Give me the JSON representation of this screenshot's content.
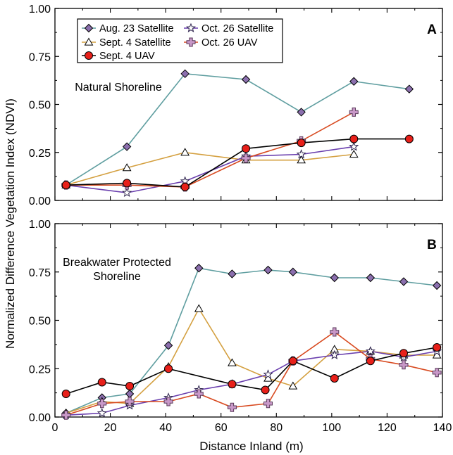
{
  "figure": {
    "ylabel": "Normalized Difference Vegetation Index (NDVI)",
    "xlabel": "Distance Inland (m)"
  },
  "legend": [
    {
      "key": "aug23sat",
      "label": "Aug. 23 Satellite"
    },
    {
      "key": "sept4sat",
      "label": "Sept. 4 Satellite"
    },
    {
      "key": "sept4uav",
      "label": "Sept. 4 UAV"
    },
    {
      "key": "oct26sat",
      "label": "Oct. 26 Satellite"
    },
    {
      "key": "oct26uav",
      "label": "Oct. 26 UAV"
    }
  ],
  "styles": {
    "aug23sat": {
      "line": "#5f9ea0",
      "fill": "#8b6fae",
      "marker": "diamond"
    },
    "sept4sat": {
      "line": "#d4a040",
      "fill": "#ffffff",
      "marker": "triangle"
    },
    "sept4uav": {
      "line": "#000000",
      "fill": "#e8201a",
      "marker": "circle"
    },
    "oct26sat": {
      "line": "#6a3fae",
      "fill": "#ffffff",
      "marker": "star"
    },
    "oct26uav": {
      "line": "#d84a20",
      "fill": "#c898c8",
      "marker": "plus"
    }
  },
  "chart_data": [
    {
      "type": "line",
      "panel_letter": "A",
      "annotation": [
        "Natural Shoreline"
      ],
      "xlim": [
        0,
        140
      ],
      "ylim": [
        0,
        1.0
      ],
      "yticks": [
        "0.00",
        "0.25",
        "0.50",
        "0.75",
        "1.00"
      ],
      "xticks": [],
      "series": [
        {
          "key": "aug23sat",
          "name": "Aug. 23 Satellite",
          "x": [
            4,
            26,
            47,
            69,
            89,
            108,
            128
          ],
          "y": [
            0.08,
            0.28,
            0.66,
            0.63,
            0.46,
            0.62,
            0.58
          ]
        },
        {
          "key": "sept4sat",
          "name": "Sept. 4 Satellite",
          "x": [
            4,
            26,
            47,
            69,
            89,
            108
          ],
          "y": [
            0.08,
            0.17,
            0.25,
            0.21,
            0.21,
            0.24
          ]
        },
        {
          "key": "oct26sat",
          "name": "Oct. 26 Satellite",
          "x": [
            4,
            26,
            47,
            69,
            89,
            108
          ],
          "y": [
            0.08,
            0.04,
            0.1,
            0.23,
            0.24,
            0.28
          ]
        },
        {
          "key": "oct26uav",
          "name": "Oct. 26 UAV",
          "x": [
            4,
            26,
            47,
            69,
            89,
            108
          ],
          "y": [
            0.08,
            0.08,
            0.07,
            0.22,
            0.31,
            0.46
          ]
        },
        {
          "key": "sept4uav",
          "name": "Sept. 4 UAV",
          "x": [
            4,
            26,
            47,
            69,
            89,
            108,
            128
          ],
          "y": [
            0.08,
            0.09,
            0.07,
            0.27,
            0.3,
            0.32,
            0.32
          ]
        }
      ]
    },
    {
      "type": "line",
      "panel_letter": "B",
      "annotation": [
        "Breakwater Protected",
        "Shoreline"
      ],
      "xlim": [
        0,
        140
      ],
      "ylim": [
        0,
        1.0
      ],
      "yticks": [
        "0.00",
        "0.25",
        "0.50",
        "0.75",
        "1.00"
      ],
      "xticks": [
        "0",
        "20",
        "40",
        "60",
        "80",
        "100",
        "120",
        "140"
      ],
      "series": [
        {
          "key": "aug23sat",
          "name": "Aug. 23 Satellite",
          "x": [
            4,
            17,
            27,
            41,
            52,
            64,
            77,
            86,
            101,
            114,
            126,
            138
          ],
          "y": [
            0.02,
            0.1,
            0.12,
            0.37,
            0.77,
            0.74,
            0.76,
            0.75,
            0.72,
            0.72,
            0.7,
            0.68
          ]
        },
        {
          "key": "sept4sat",
          "name": "Sept. 4 Satellite",
          "x": [
            4,
            17,
            27,
            41,
            52,
            64,
            77,
            86,
            101,
            114,
            126,
            138
          ],
          "y": [
            0.02,
            0.08,
            0.07,
            0.26,
            0.56,
            0.28,
            0.2,
            0.16,
            0.35,
            0.34,
            0.32,
            0.32
          ]
        },
        {
          "key": "oct26sat",
          "name": "Oct. 26 Satellite",
          "x": [
            4,
            17,
            27,
            41,
            52,
            64,
            77,
            86,
            101,
            114,
            126,
            138
          ],
          "y": [
            0.01,
            0.02,
            0.06,
            0.1,
            0.14,
            0.17,
            0.22,
            0.29,
            0.32,
            0.34,
            0.31,
            0.34
          ]
        },
        {
          "key": "oct26uav",
          "name": "Oct. 26 UAV",
          "x": [
            4,
            17,
            27,
            41,
            52,
            64,
            77,
            86,
            101,
            114,
            126,
            138
          ],
          "y": [
            0.01,
            0.07,
            0.08,
            0.08,
            0.12,
            0.05,
            0.07,
            0.29,
            0.44,
            0.3,
            0.27,
            0.23
          ]
        },
        {
          "key": "sept4uav",
          "name": "Sept. 4 UAV",
          "x": [
            4,
            17,
            27,
            41,
            64,
            76,
            86,
            101,
            114,
            126,
            138
          ],
          "y": [
            0.12,
            0.18,
            0.16,
            0.25,
            0.17,
            0.14,
            0.29,
            0.2,
            0.29,
            0.33,
            0.36
          ]
        }
      ]
    }
  ]
}
